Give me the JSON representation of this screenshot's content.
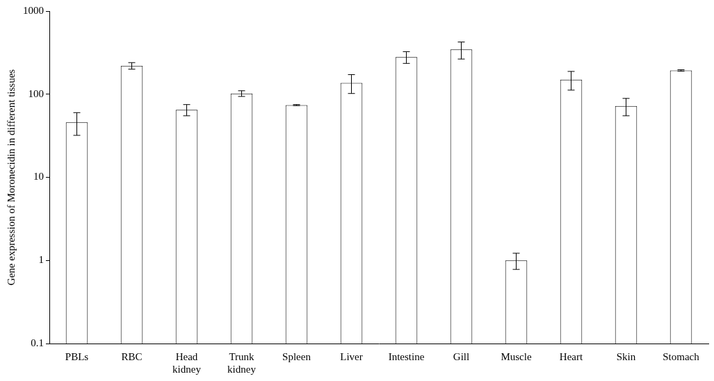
{
  "chart_data": {
    "type": "bar",
    "y_label": "Gene expression of Moronecidin in different tissues",
    "categories": [
      "PBLs",
      "RBC",
      "Head kidney",
      "Trunk kidney",
      "Spleen",
      "Liver",
      "Intestine",
      "Gill",
      "Muscle",
      "Heart",
      "Skin",
      "Stomach"
    ],
    "values": [
      46,
      220,
      65,
      102,
      74,
      137,
      280,
      345,
      1.0,
      150,
      72,
      193
    ],
    "errors": [
      14,
      20,
      10,
      8,
      1,
      35,
      45,
      80,
      0.22,
      38,
      17,
      4
    ],
    "color": "#ffffff",
    "log": "y",
    "ylim": [
      0.1,
      1000
    ],
    "yticks": [
      0.1,
      1,
      10,
      100,
      1000
    ],
    "grid": false
  }
}
